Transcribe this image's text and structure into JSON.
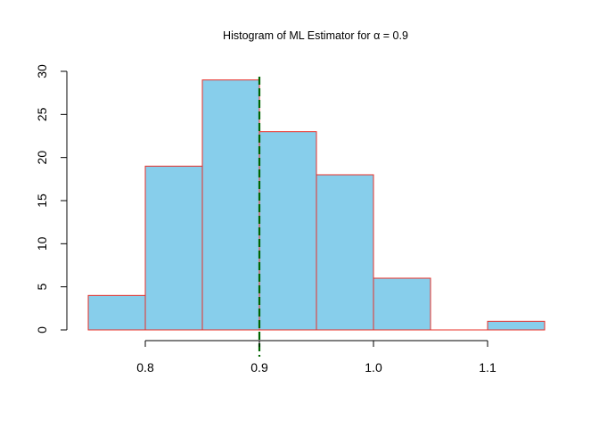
{
  "chart_data": {
    "type": "bar",
    "title_prefix": "Histogram of ML Estimator for ",
    "title_symbol": "α",
    "title_suffix": " = 0.9",
    "xlabel": "",
    "ylabel": "",
    "bins": [
      {
        "x0": 0.75,
        "x1": 0.8,
        "count": 4
      },
      {
        "x0": 0.8,
        "x1": 0.85,
        "count": 19
      },
      {
        "x0": 0.85,
        "x1": 0.9,
        "count": 29
      },
      {
        "x0": 0.9,
        "x1": 0.95,
        "count": 23
      },
      {
        "x0": 0.95,
        "x1": 1.0,
        "count": 18
      },
      {
        "x0": 1.0,
        "x1": 1.05,
        "count": 6
      },
      {
        "x0": 1.05,
        "x1": 1.1,
        "count": 0
      },
      {
        "x0": 1.1,
        "x1": 1.15,
        "count": 1
      }
    ],
    "x_ticks": [
      {
        "value": 0.8,
        "label": "0.8"
      },
      {
        "value": 0.9,
        "label": "0.9"
      },
      {
        "value": 1.0,
        "label": "1.0"
      },
      {
        "value": 1.1,
        "label": "1.1"
      }
    ],
    "y_ticks": [
      {
        "value": 0,
        "label": "0"
      },
      {
        "value": 5,
        "label": "5"
      },
      {
        "value": 10,
        "label": "10"
      },
      {
        "value": 15,
        "label": "15"
      },
      {
        "value": 20,
        "label": "20"
      },
      {
        "value": 25,
        "label": "25"
      },
      {
        "value": 30,
        "label": "30"
      }
    ],
    "xlim": [
      0.75,
      1.15
    ],
    "ylim": [
      0,
      30
    ],
    "reference_line": {
      "x": 0.9,
      "style": "dashed",
      "color": "#006400"
    },
    "colors": {
      "bar_fill": "#87CEEB",
      "bar_border": "#E8302A",
      "reference": "#006400"
    },
    "grid": false,
    "legend": "none"
  }
}
